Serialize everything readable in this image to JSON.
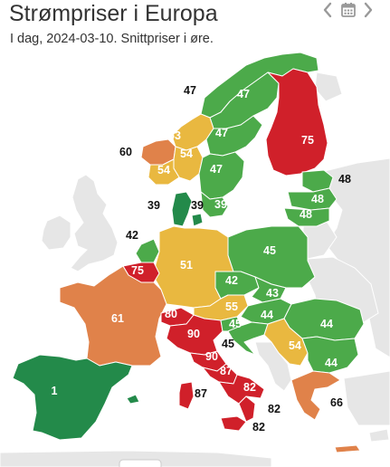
{
  "header": {
    "title": "Strømpriser i Europa",
    "subtitle": "I dag, 2024-03-10. Snittpriser i øre."
  },
  "nav": {
    "prev_icon": "chevron-left-icon",
    "calendar_icon": "calendar-icon",
    "next_icon": "chevron-right-icon"
  },
  "colors": {
    "green": "#4caa4a",
    "dark_green": "#238a4a",
    "yellow": "#e9b840",
    "orange": "#e0824a",
    "red": "#d0202a",
    "gray": "#e6e6e6"
  },
  "labels": [
    {
      "id": "label-no-north",
      "text": "47",
      "style": "out"
    },
    {
      "id": "label-se-north",
      "text": "47",
      "style": "in"
    },
    {
      "id": "label-fi",
      "text": "75",
      "style": "in"
    },
    {
      "id": "label-no-central",
      "text": "53",
      "style": "in"
    },
    {
      "id": "label-se-mid",
      "text": "47",
      "style": "in"
    },
    {
      "id": "label-no-west",
      "text": "60",
      "style": "out"
    },
    {
      "id": "label-no-south-1",
      "text": "54",
      "style": "in"
    },
    {
      "id": "label-no-south-2",
      "text": "54",
      "style": "in"
    },
    {
      "id": "label-se-south",
      "text": "47",
      "style": "in"
    },
    {
      "id": "label-ee",
      "text": "48",
      "style": "out"
    },
    {
      "id": "label-lv",
      "text": "48",
      "style": "in"
    },
    {
      "id": "label-lt",
      "text": "48",
      "style": "in"
    },
    {
      "id": "label-dk-west",
      "text": "39",
      "style": "out"
    },
    {
      "id": "label-dk-east",
      "text": "39",
      "style": "out"
    },
    {
      "id": "label-se-4",
      "text": "39",
      "style": "in"
    },
    {
      "id": "label-nl",
      "text": "42",
      "style": "out"
    },
    {
      "id": "label-pl",
      "text": "45",
      "style": "in"
    },
    {
      "id": "label-be",
      "text": "75",
      "style": "in"
    },
    {
      "id": "label-de",
      "text": "51",
      "style": "in"
    },
    {
      "id": "label-cz",
      "text": "42",
      "style": "in"
    },
    {
      "id": "label-sk",
      "text": "43",
      "style": "in"
    },
    {
      "id": "label-fr",
      "text": "61",
      "style": "in"
    },
    {
      "id": "label-at",
      "text": "55",
      "style": "in"
    },
    {
      "id": "label-hu",
      "text": "44",
      "style": "in"
    },
    {
      "id": "label-ro",
      "text": "44",
      "style": "in"
    },
    {
      "id": "label-ch",
      "text": "80",
      "style": "in"
    },
    {
      "id": "label-it-north",
      "text": "90",
      "style": "in"
    },
    {
      "id": "label-si",
      "text": "45",
      "style": "in"
    },
    {
      "id": "label-hr",
      "text": "45",
      "style": "out"
    },
    {
      "id": "label-rs",
      "text": "54",
      "style": "in"
    },
    {
      "id": "label-bg",
      "text": "44",
      "style": "in"
    },
    {
      "id": "label-it-cnor",
      "text": "90",
      "style": "in"
    },
    {
      "id": "label-it-csud",
      "text": "87",
      "style": "in"
    },
    {
      "id": "label-it-sud",
      "text": "82",
      "style": "in"
    },
    {
      "id": "label-sardinia",
      "text": "87",
      "style": "out"
    },
    {
      "id": "label-es",
      "text": "1",
      "style": "in"
    },
    {
      "id": "label-gr",
      "text": "66",
      "style": "out"
    },
    {
      "id": "label-calabria",
      "text": "82",
      "style": "out"
    },
    {
      "id": "label-sicily",
      "text": "82",
      "style": "out"
    }
  ]
}
